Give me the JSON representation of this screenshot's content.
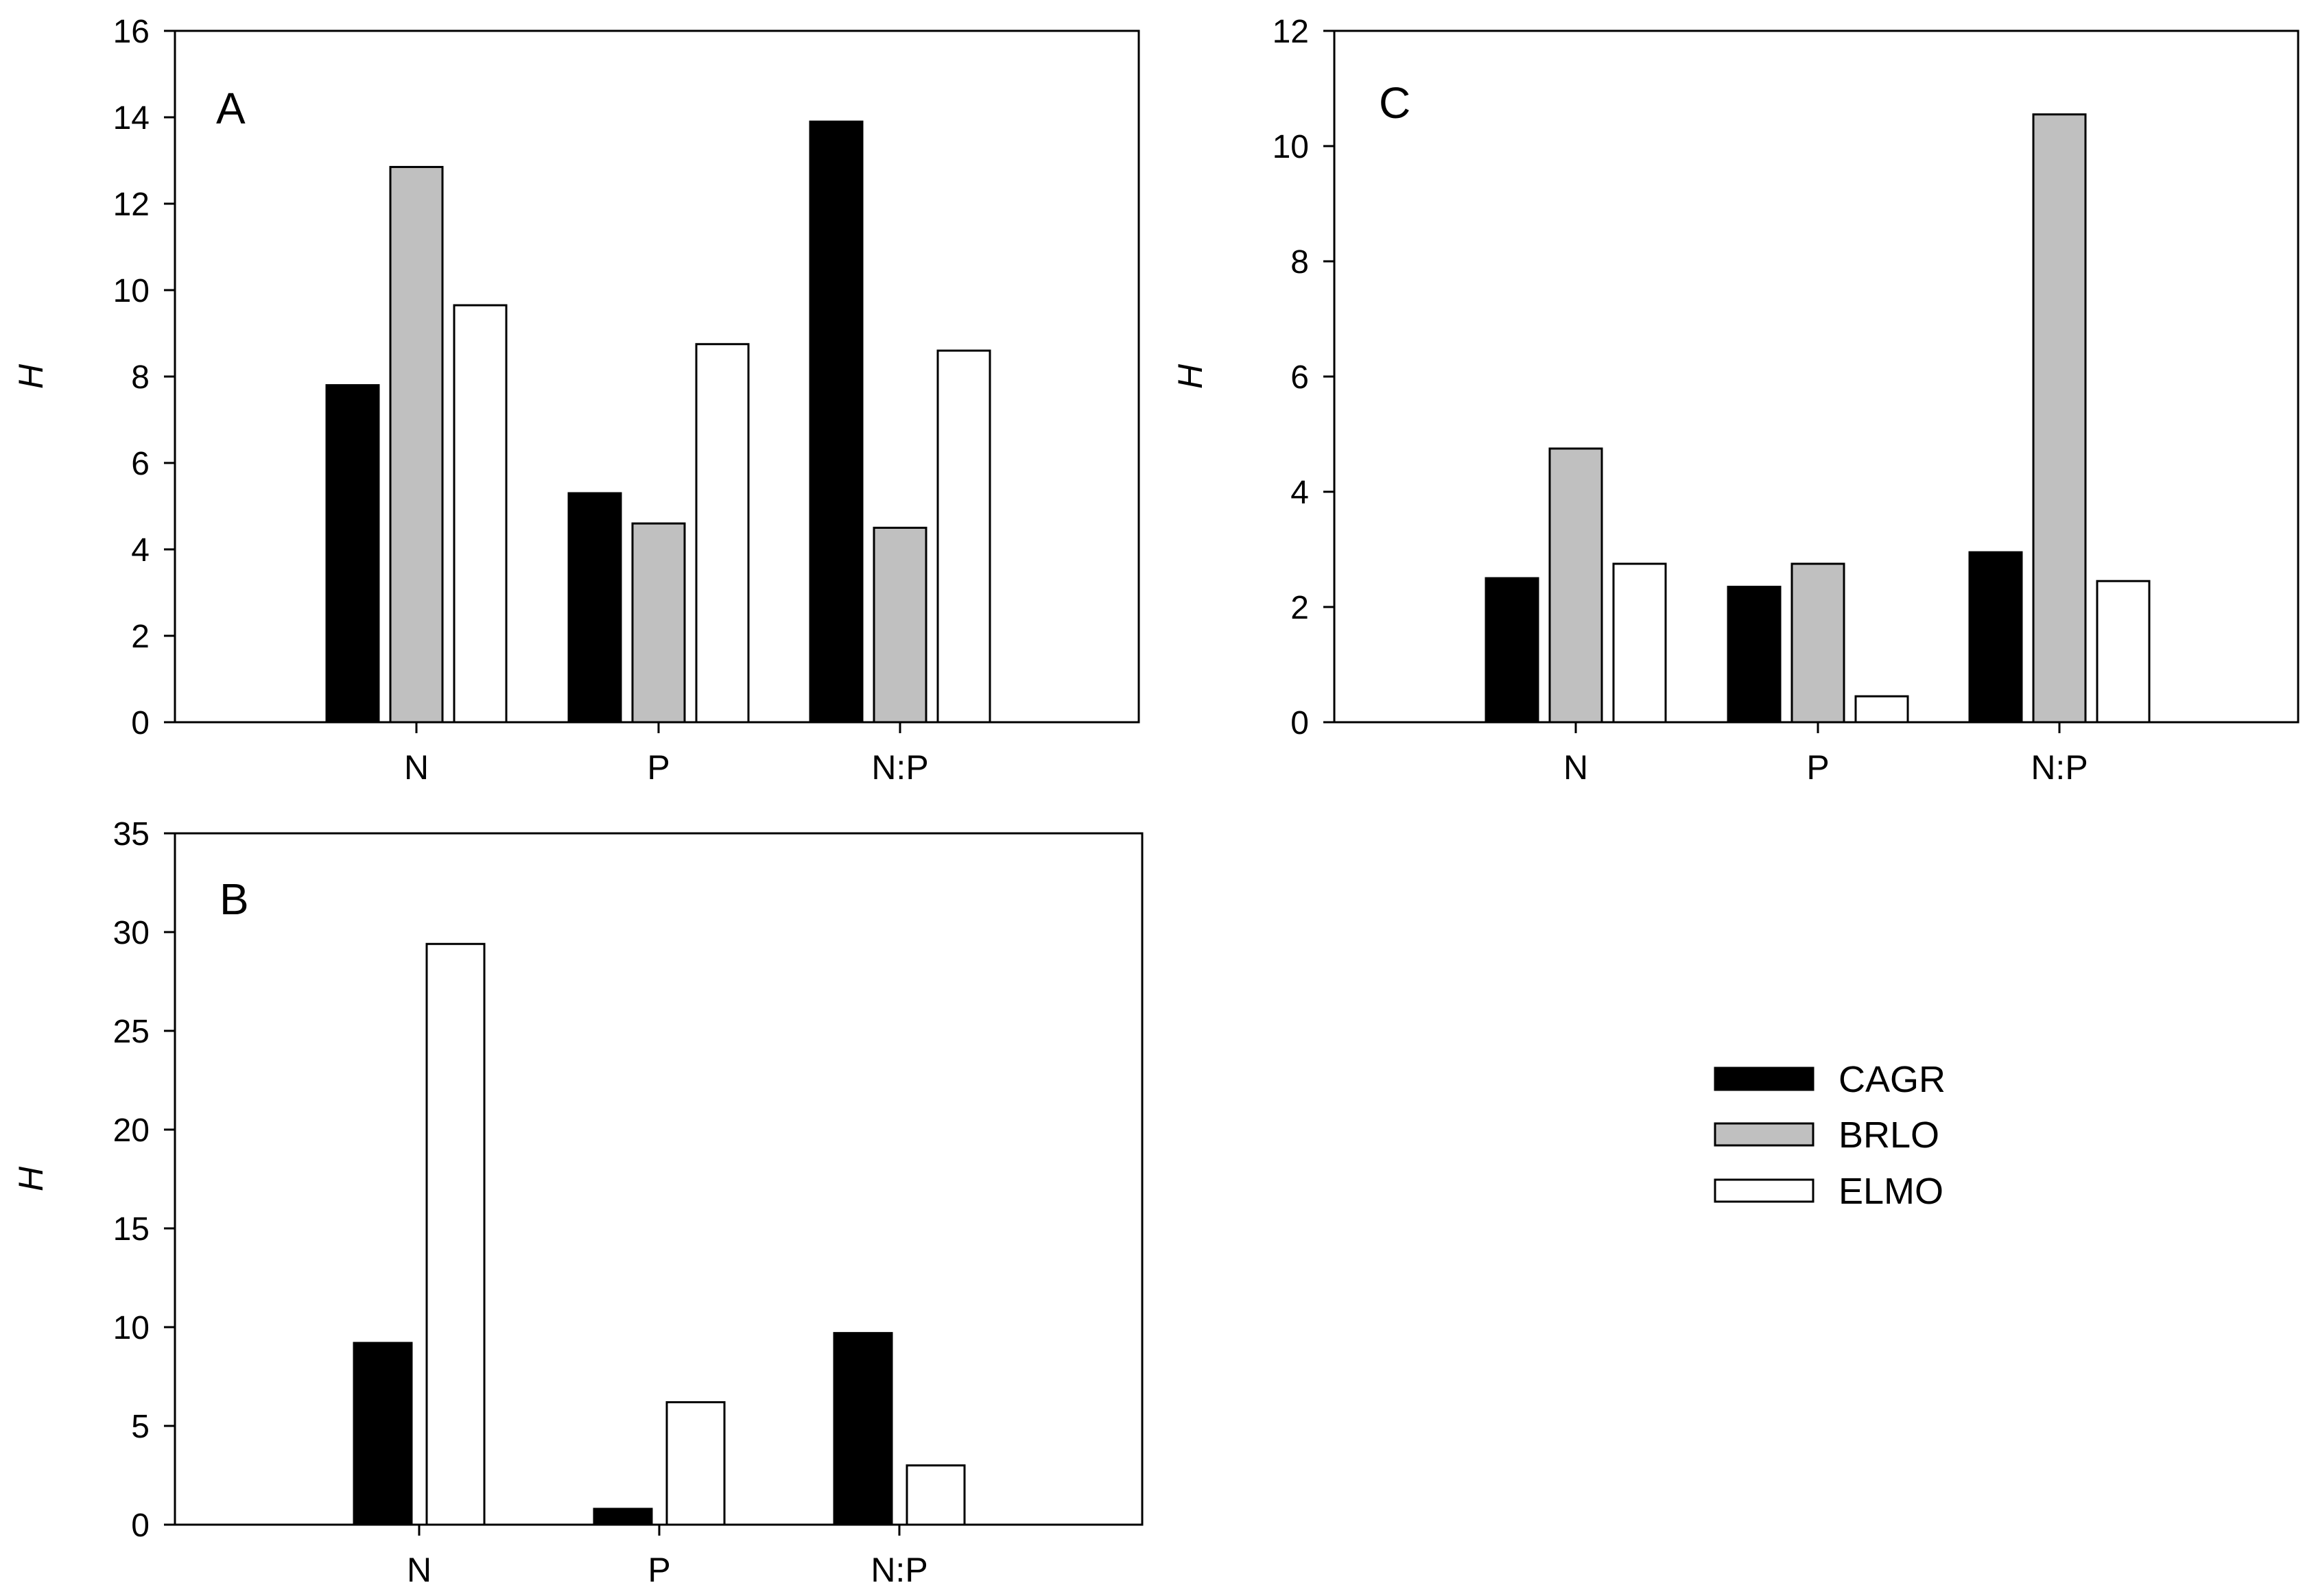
{
  "colors": {
    "CAGR": "#000000",
    "BRLO": "#c0c0c0",
    "ELMO": "#ffffff",
    "stroke": "#000000"
  },
  "legend": {
    "entries": [
      {
        "name": "CAGR",
        "color": "#000000"
      },
      {
        "name": "BRLO",
        "color": "#c0c0c0"
      },
      {
        "name": "ELMO",
        "color": "#ffffff"
      }
    ],
    "placement": "lower-right"
  },
  "chart_data": [
    {
      "type": "bar",
      "panel": "A",
      "ylabel": "H",
      "categories": [
        "N",
        "P",
        "N:P"
      ],
      "ylim": [
        0,
        16
      ],
      "yticks": [
        "0",
        "2",
        "4",
        "6",
        "8",
        "10",
        "12",
        "14",
        "16"
      ],
      "series": [
        {
          "name": "CAGR",
          "values": [
            7.8,
            5.3,
            13.9
          ]
        },
        {
          "name": "BRLO",
          "values": [
            12.85,
            4.6,
            4.5
          ]
        },
        {
          "name": "ELMO",
          "values": [
            9.65,
            8.75,
            8.6
          ]
        }
      ]
    },
    {
      "type": "bar",
      "panel": "B",
      "ylabel": "H",
      "categories": [
        "N",
        "P",
        "N:P"
      ],
      "ylim": [
        0,
        35
      ],
      "yticks": [
        "0",
        "5",
        "10",
        "15",
        "20",
        "25",
        "30",
        "35"
      ],
      "series": [
        {
          "name": "CAGR",
          "values": [
            9.2,
            0.8,
            9.7
          ]
        },
        {
          "name": "ELMO",
          "values": [
            29.4,
            6.2,
            3.0
          ]
        }
      ]
    },
    {
      "type": "bar",
      "panel": "C",
      "ylabel": "H",
      "categories": [
        "N",
        "P",
        "N:P"
      ],
      "ylim": [
        0,
        12
      ],
      "yticks": [
        "0",
        "2",
        "4",
        "6",
        "8",
        "10",
        "12"
      ],
      "series": [
        {
          "name": "CAGR",
          "values": [
            2.5,
            2.35,
            2.95
          ]
        },
        {
          "name": "BRLO",
          "values": [
            4.75,
            2.75,
            10.55
          ]
        },
        {
          "name": "ELMO",
          "values": [
            2.75,
            0.45,
            2.45
          ]
        }
      ]
    }
  ]
}
